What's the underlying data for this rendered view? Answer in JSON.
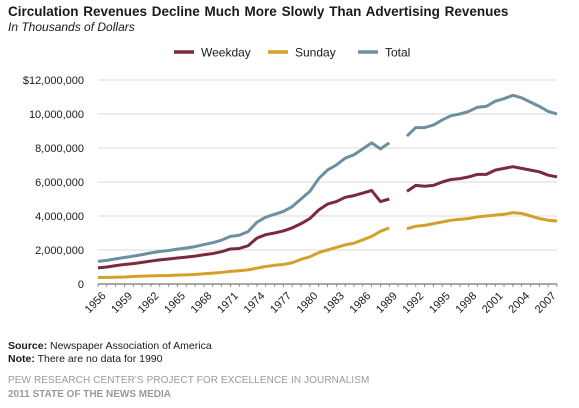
{
  "header": {
    "title": "Circulation Revenues Decline Much More Slowly Than Advertising Revenues",
    "subtitle": "In Thousands of Dollars"
  },
  "chart_data": {
    "type": "line",
    "x": [
      1956,
      1957,
      1958,
      1959,
      1960,
      1961,
      1962,
      1963,
      1964,
      1965,
      1966,
      1967,
      1968,
      1969,
      1970,
      1971,
      1972,
      1973,
      1974,
      1975,
      1976,
      1977,
      1978,
      1979,
      1980,
      1981,
      1982,
      1983,
      1984,
      1985,
      1986,
      1987,
      1988,
      1989,
      1990,
      1991,
      1992,
      1993,
      1994,
      1995,
      1996,
      1997,
      1998,
      1999,
      2000,
      2001,
      2002,
      2003,
      2004,
      2005,
      2006,
      2007,
      2008
    ],
    "series": [
      {
        "name": "Weekday",
        "color": "#7b2a3b",
        "values": [
          950000,
          1000000,
          1080000,
          1150000,
          1200000,
          1270000,
          1350000,
          1420000,
          1470000,
          1530000,
          1580000,
          1640000,
          1720000,
          1790000,
          1900000,
          2060000,
          2090000,
          2250000,
          2700000,
          2900000,
          3000000,
          3120000,
          3300000,
          3550000,
          3850000,
          4350000,
          4700000,
          4850000,
          5100000,
          5200000,
          5350000,
          5500000,
          4850000,
          5000000,
          null,
          5450000,
          5800000,
          5750000,
          5800000,
          6000000,
          6150000,
          6200000,
          6300000,
          6450000,
          6450000,
          6700000,
          6800000,
          6900000,
          6800000,
          6700000,
          6600000,
          6400000,
          6300000
        ]
      },
      {
        "name": "Sunday",
        "color": "#d4a02a",
        "values": [
          380000,
          390000,
          400000,
          410000,
          440000,
          460000,
          480000,
          490000,
          500000,
          520000,
          540000,
          560000,
          600000,
          640000,
          680000,
          740000,
          780000,
          830000,
          930000,
          1030000,
          1100000,
          1150000,
          1250000,
          1450000,
          1600000,
          1850000,
          2000000,
          2150000,
          2300000,
          2400000,
          2600000,
          2800000,
          3100000,
          3300000,
          null,
          3250000,
          3400000,
          3450000,
          3550000,
          3650000,
          3750000,
          3800000,
          3850000,
          3950000,
          4000000,
          4050000,
          4100000,
          4200000,
          4150000,
          4000000,
          3850000,
          3750000,
          3700000
        ]
      },
      {
        "name": "Total",
        "color": "#6e8fa0",
        "values": [
          1330000,
          1390000,
          1480000,
          1560000,
          1640000,
          1730000,
          1830000,
          1910000,
          1970000,
          2050000,
          2120000,
          2200000,
          2320000,
          2430000,
          2580000,
          2800000,
          2870000,
          3080000,
          3630000,
          3930000,
          4100000,
          4270000,
          4550000,
          5000000,
          5450000,
          6200000,
          6700000,
          7000000,
          7400000,
          7600000,
          7950000,
          8300000,
          7950000,
          8300000,
          null,
          8700000,
          9200000,
          9200000,
          9350000,
          9650000,
          9900000,
          10000000,
          10150000,
          10400000,
          10450000,
          10750000,
          10900000,
          11100000,
          10950000,
          10700000,
          10450000,
          10150000,
          10000000
        ]
      }
    ],
    "x_ticks": [
      "1956",
      "1959",
      "1962",
      "1965",
      "1968",
      "1971",
      "1974",
      "1977",
      "1980",
      "1983",
      "1986",
      "1989",
      "1992",
      "1995",
      "1998",
      "2001",
      "2004",
      "2007"
    ],
    "y_ticks": [
      "0",
      "2,000,000",
      "4,000,000",
      "6,000,000",
      "8,000,000",
      "10,000,000",
      "$12,000,000"
    ],
    "ylim": [
      0,
      12000000
    ],
    "grid": true,
    "legend_position": "top"
  },
  "footer": {
    "source_label": "Source:",
    "source_text": " Newspaper Association of America",
    "note_label": "Note:",
    "note_text": " There are no data for 1990",
    "org_line": "PEW RESEARCH CENTER'S PROJECT FOR EXCELLENCE IN JOURNALISM",
    "report_line": "2011 STATE OF THE NEWS MEDIA"
  }
}
